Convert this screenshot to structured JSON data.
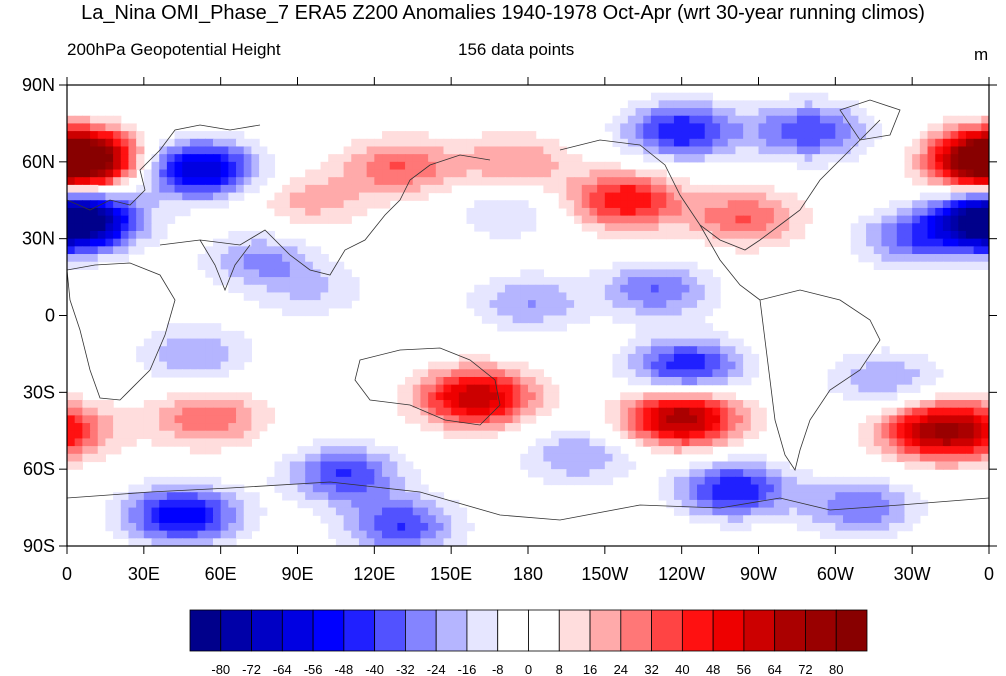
{
  "title": "La_Nina OMI_Phase_7 ERA5 Z200 Anomalies 1940-1978 Oct-Apr (wrt 30-year running climos)",
  "subtitle_left": "200hPa Geopotential Height",
  "subtitle_center": "156 data points",
  "units": "m",
  "chart_data": {
    "type": "heatmap",
    "projection": "cylindrical-equidistant",
    "variable": "Z200 anomaly",
    "lon_range": [
      0,
      360
    ],
    "lat_range": [
      -90,
      90
    ],
    "x_ticks": [
      "0",
      "30E",
      "60E",
      "90E",
      "120E",
      "150E",
      "180",
      "150W",
      "120W",
      "90W",
      "60W",
      "30W",
      "0"
    ],
    "y_ticks": [
      "90N",
      "60N",
      "30N",
      "0",
      "30S",
      "60S",
      "90S"
    ],
    "colorbar_levels": [
      -80,
      -72,
      -64,
      -56,
      -48,
      -40,
      -32,
      -24,
      -16,
      -8,
      0,
      8,
      16,
      24,
      32,
      40,
      48,
      56,
      64,
      72,
      80
    ],
    "colorbar_colors": [
      "#00008b",
      "#0000a8",
      "#0000c5",
      "#0000e2",
      "#0000ff",
      "#2020ff",
      "#5252ff",
      "#8484ff",
      "#b5b5ff",
      "#e6e6ff",
      "#ffffff",
      "#ffffff",
      "#ffdddd",
      "#ffaaaa",
      "#ff7777",
      "#ff4444",
      "#ff1111",
      "#ee0000",
      "#cc0000",
      "#aa0000",
      "#990000",
      "#880000"
    ],
    "anomaly_centers": [
      {
        "lon": 5,
        "lat": 62,
        "value": 60
      },
      {
        "lon": 360,
        "lat": 60,
        "value": 70
      },
      {
        "lon": 52,
        "lat": 57,
        "value": -64
      },
      {
        "lon": 5,
        "lat": 37,
        "value": -56
      },
      {
        "lon": 360,
        "lat": 37,
        "value": -56
      },
      {
        "lon": 130,
        "lat": 58,
        "value": 32
      },
      {
        "lon": 175,
        "lat": 60,
        "value": 24
      },
      {
        "lon": 95,
        "lat": 45,
        "value": 20
      },
      {
        "lon": 218,
        "lat": 45,
        "value": 48
      },
      {
        "lon": 265,
        "lat": 38,
        "value": 32
      },
      {
        "lon": 172,
        "lat": 40,
        "value": -16
      },
      {
        "lon": 240,
        "lat": 72,
        "value": -48
      },
      {
        "lon": 290,
        "lat": 72,
        "value": -40
      },
      {
        "lon": 330,
        "lat": 30,
        "value": -32
      },
      {
        "lon": 230,
        "lat": 10,
        "value": -32
      },
      {
        "lon": 242,
        "lat": -20,
        "value": -48
      },
      {
        "lon": 180,
        "lat": 5,
        "value": -24
      },
      {
        "lon": 75,
        "lat": 22,
        "value": -24
      },
      {
        "lon": 95,
        "lat": 10,
        "value": -16
      },
      {
        "lon": 50,
        "lat": -15,
        "value": -24
      },
      {
        "lon": 160,
        "lat": -32,
        "value": 64
      },
      {
        "lon": 240,
        "lat": -40,
        "value": 72
      },
      {
        "lon": 340,
        "lat": -45,
        "value": 64
      },
      {
        "lon": 55,
        "lat": -40,
        "value": 32
      },
      {
        "lon": 320,
        "lat": -25,
        "value": -24
      },
      {
        "lon": 108,
        "lat": -62,
        "value": -40
      },
      {
        "lon": 45,
        "lat": -78,
        "value": -56
      },
      {
        "lon": 130,
        "lat": -82,
        "value": -40
      },
      {
        "lon": 260,
        "lat": -68,
        "value": -48
      },
      {
        "lon": 310,
        "lat": -75,
        "value": -32
      },
      {
        "lon": 0,
        "lat": -45,
        "value": 24
      },
      {
        "lon": 200,
        "lat": -55,
        "value": -24
      }
    ]
  }
}
